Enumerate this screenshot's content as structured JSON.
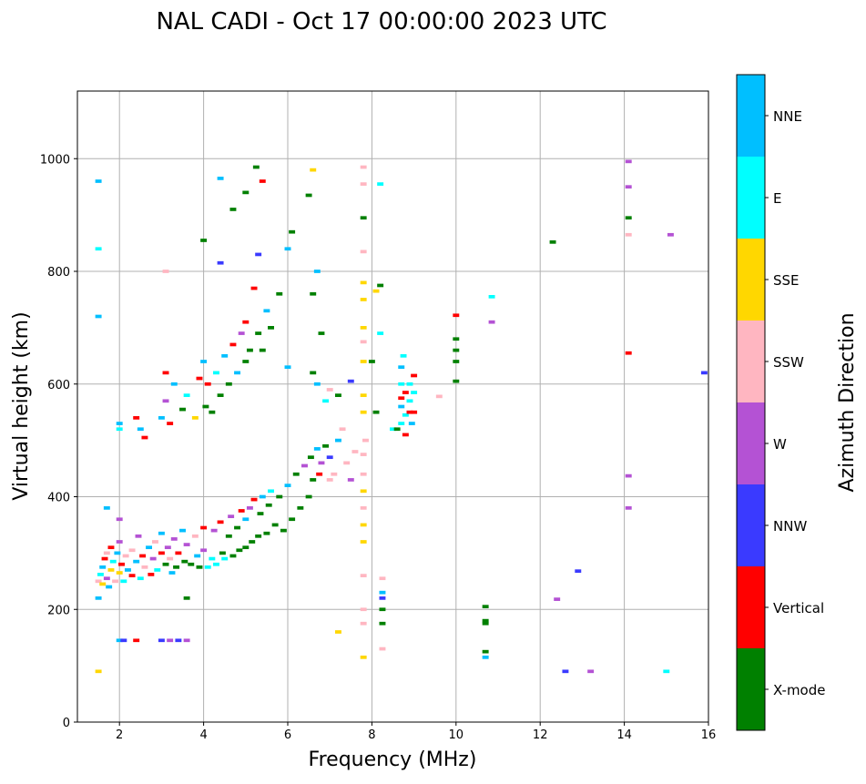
{
  "chart_data": {
    "type": "heatmap",
    "title": "NAL CADI - Oct 17 00:00:00 2023 UTC",
    "xlabel": "Frequency (MHz)",
    "ylabel": "Virtual height (km)",
    "xlim": [
      1,
      16
    ],
    "ylim": [
      0,
      1120
    ],
    "xticks": [
      2,
      4,
      6,
      8,
      10,
      12,
      14,
      16
    ],
    "yticks": [
      0,
      200,
      400,
      600,
      800,
      1000
    ],
    "grid": true,
    "colorbar": {
      "label": "Azimuth Direction",
      "categories": [
        {
          "name": "X-mode",
          "color": "#008000"
        },
        {
          "name": "Vertical",
          "color": "#ff0000"
        },
        {
          "name": "NNW",
          "color": "#3a3aff"
        },
        {
          "name": "W",
          "color": "#b452d4"
        },
        {
          "name": "SSW",
          "color": "#ffb6c1"
        },
        {
          "name": "SSE",
          "color": "#ffd700"
        },
        {
          "name": "E",
          "color": "#00ffff"
        },
        {
          "name": "NNE",
          "color": "#00bfff"
        }
      ]
    },
    "point_fields": [
      "frequency_mhz",
      "virtual_height_km",
      "category_index"
    ],
    "points": [
      [
        1.5,
        250,
        4
      ],
      [
        1.55,
        262,
        6
      ],
      [
        1.6,
        245,
        5
      ],
      [
        1.6,
        275,
        7
      ],
      [
        1.65,
        290,
        1
      ],
      [
        1.7,
        255,
        3
      ],
      [
        1.7,
        300,
        4
      ],
      [
        1.75,
        240,
        7
      ],
      [
        1.8,
        270,
        5
      ],
      [
        1.8,
        310,
        1
      ],
      [
        1.85,
        285,
        6
      ],
      [
        1.9,
        250,
        4
      ],
      [
        1.95,
        300,
        7
      ],
      [
        2.0,
        265,
        5
      ],
      [
        2.0,
        320,
        3
      ],
      [
        2.05,
        280,
        1
      ],
      [
        2.1,
        250,
        6
      ],
      [
        2.15,
        295,
        4
      ],
      [
        2.2,
        270,
        7
      ],
      [
        2.3,
        260,
        1
      ],
      [
        2.3,
        305,
        4
      ],
      [
        2.4,
        285,
        7
      ],
      [
        2.45,
        330,
        3
      ],
      [
        2.5,
        255,
        6
      ],
      [
        2.55,
        295,
        1
      ],
      [
        2.6,
        275,
        4
      ],
      [
        2.7,
        310,
        7
      ],
      [
        2.75,
        262,
        1
      ],
      [
        2.8,
        290,
        3
      ],
      [
        2.85,
        320,
        4
      ],
      [
        2.9,
        270,
        6
      ],
      [
        3.0,
        300,
        1
      ],
      [
        3.0,
        335,
        7
      ],
      [
        3.1,
        280,
        0
      ],
      [
        3.15,
        310,
        3
      ],
      [
        3.2,
        290,
        4
      ],
      [
        3.25,
        265,
        7
      ],
      [
        3.3,
        325,
        3
      ],
      [
        3.35,
        275,
        0
      ],
      [
        3.4,
        300,
        1
      ],
      [
        3.5,
        340,
        7
      ],
      [
        3.55,
        285,
        0
      ],
      [
        3.6,
        315,
        3
      ],
      [
        3.7,
        280,
        0
      ],
      [
        3.8,
        330,
        4
      ],
      [
        3.85,
        295,
        7
      ],
      [
        3.9,
        275,
        0
      ],
      [
        4.0,
        345,
        1
      ],
      [
        4.0,
        305,
        3
      ],
      [
        4.1,
        275,
        6
      ],
      [
        4.2,
        290,
        6
      ],
      [
        4.25,
        340,
        3
      ],
      [
        4.3,
        280,
        6
      ],
      [
        4.4,
        355,
        1
      ],
      [
        4.45,
        300,
        0
      ],
      [
        4.5,
        290,
        6
      ],
      [
        4.6,
        330,
        0
      ],
      [
        4.65,
        365,
        3
      ],
      [
        4.7,
        295,
        0
      ],
      [
        4.8,
        345,
        0
      ],
      [
        4.85,
        305,
        0
      ],
      [
        4.9,
        375,
        1
      ],
      [
        5.0,
        310,
        0
      ],
      [
        5.0,
        360,
        7
      ],
      [
        5.1,
        380,
        3
      ],
      [
        5.15,
        320,
        0
      ],
      [
        5.2,
        395,
        1
      ],
      [
        5.3,
        330,
        0
      ],
      [
        5.35,
        370,
        0
      ],
      [
        5.4,
        400,
        7
      ],
      [
        5.5,
        335,
        0
      ],
      [
        5.55,
        385,
        0
      ],
      [
        5.6,
        410,
        6
      ],
      [
        5.7,
        350,
        0
      ],
      [
        5.8,
        400,
        0
      ],
      [
        5.9,
        340,
        0
      ],
      [
        6.0,
        420,
        7
      ],
      [
        6.1,
        360,
        0
      ],
      [
        6.2,
        440,
        0
      ],
      [
        6.3,
        380,
        0
      ],
      [
        6.4,
        455,
        3
      ],
      [
        6.5,
        400,
        0
      ],
      [
        6.55,
        470,
        0
      ],
      [
        6.6,
        430,
        0
      ],
      [
        6.7,
        485,
        7
      ],
      [
        6.75,
        440,
        1
      ],
      [
        6.8,
        460,
        3
      ],
      [
        6.9,
        490,
        0
      ],
      [
        7.0,
        430,
        4
      ],
      [
        7.0,
        470,
        2
      ],
      [
        7.1,
        440,
        4
      ],
      [
        7.2,
        500,
        7
      ],
      [
        7.4,
        460,
        4
      ],
      [
        7.5,
        430,
        3
      ],
      [
        7.6,
        480,
        4
      ],
      [
        7.8,
        475,
        4
      ],
      [
        7.85,
        500,
        4
      ],
      [
        2.0,
        530,
        7
      ],
      [
        2.0,
        520,
        6
      ],
      [
        2.4,
        540,
        1
      ],
      [
        2.5,
        520,
        7
      ],
      [
        2.6,
        505,
        1
      ],
      [
        3.0,
        540,
        7
      ],
      [
        3.1,
        570,
        3
      ],
      [
        3.2,
        530,
        1
      ],
      [
        3.3,
        600,
        7
      ],
      [
        3.5,
        555,
        0
      ],
      [
        3.6,
        580,
        6
      ],
      [
        3.8,
        540,
        5
      ],
      [
        3.9,
        610,
        1
      ],
      [
        4.0,
        640,
        7
      ],
      [
        4.05,
        560,
        0
      ],
      [
        4.1,
        600,
        1
      ],
      [
        4.2,
        550,
        0
      ],
      [
        4.3,
        620,
        6
      ],
      [
        4.4,
        580,
        0
      ],
      [
        4.5,
        650,
        7
      ],
      [
        4.6,
        600,
        0
      ],
      [
        4.7,
        670,
        1
      ],
      [
        4.8,
        620,
        7
      ],
      [
        4.9,
        690,
        3
      ],
      [
        5.0,
        640,
        0
      ],
      [
        5.0,
        710,
        1
      ],
      [
        5.1,
        660,
        0
      ],
      [
        5.2,
        770,
        1
      ],
      [
        5.3,
        690,
        0
      ],
      [
        5.4,
        660,
        0
      ],
      [
        5.5,
        730,
        7
      ],
      [
        5.6,
        700,
        0
      ],
      [
        5.8,
        760,
        0
      ],
      [
        6.0,
        840,
        7
      ],
      [
        6.0,
        630,
        7
      ],
      [
        6.1,
        870,
        0
      ],
      [
        5.3,
        830,
        2
      ],
      [
        5.4,
        960,
        1
      ],
      [
        5.25,
        985,
        0
      ],
      [
        5.0,
        940,
        0
      ],
      [
        4.7,
        910,
        0
      ],
      [
        4.4,
        965,
        7
      ],
      [
        4.4,
        815,
        2
      ],
      [
        4.0,
        855,
        0
      ],
      [
        6.5,
        935,
        0
      ],
      [
        6.6,
        980,
        5
      ],
      [
        6.6,
        760,
        0
      ],
      [
        6.7,
        800,
        7
      ],
      [
        6.8,
        690,
        0
      ],
      [
        6.6,
        620,
        0
      ],
      [
        6.7,
        600,
        7
      ],
      [
        6.9,
        570,
        6
      ],
      [
        7.0,
        590,
        4
      ],
      [
        7.2,
        580,
        0
      ],
      [
        7.3,
        520,
        4
      ],
      [
        7.5,
        605,
        2
      ],
      [
        7.8,
        985,
        4
      ],
      [
        7.8,
        955,
        4
      ],
      [
        7.8,
        895,
        0
      ],
      [
        7.8,
        835,
        4
      ],
      [
        7.8,
        780,
        5
      ],
      [
        7.8,
        750,
        5
      ],
      [
        7.8,
        700,
        5
      ],
      [
        7.8,
        675,
        4
      ],
      [
        7.8,
        640,
        5
      ],
      [
        7.8,
        580,
        5
      ],
      [
        7.8,
        550,
        5
      ],
      [
        7.8,
        440,
        4
      ],
      [
        7.8,
        410,
        5
      ],
      [
        7.8,
        380,
        4
      ],
      [
        7.8,
        350,
        5
      ],
      [
        7.8,
        320,
        5
      ],
      [
        7.8,
        260,
        4
      ],
      [
        7.8,
        200,
        4
      ],
      [
        7.8,
        175,
        4
      ],
      [
        7.8,
        115,
        5
      ],
      [
        8.0,
        640,
        0
      ],
      [
        8.1,
        765,
        5
      ],
      [
        8.2,
        775,
        0
      ],
      [
        8.2,
        690,
        6
      ],
      [
        8.2,
        955,
        6
      ],
      [
        8.25,
        255,
        4
      ],
      [
        8.25,
        230,
        7
      ],
      [
        8.25,
        220,
        2
      ],
      [
        8.25,
        200,
        0
      ],
      [
        8.25,
        175,
        0
      ],
      [
        8.25,
        130,
        4
      ],
      [
        8.1,
        550,
        0
      ],
      [
        8.5,
        520,
        6
      ],
      [
        8.6,
        520,
        0
      ],
      [
        8.7,
        530,
        6
      ],
      [
        8.7,
        560,
        7
      ],
      [
        8.7,
        600,
        6
      ],
      [
        8.7,
        630,
        7
      ],
      [
        8.75,
        650,
        6
      ],
      [
        8.8,
        510,
        1
      ],
      [
        8.8,
        545,
        6
      ],
      [
        8.8,
        585,
        1
      ],
      [
        8.9,
        550,
        1
      ],
      [
        8.9,
        570,
        6
      ],
      [
        8.9,
        600,
        6
      ],
      [
        8.95,
        530,
        7
      ],
      [
        9.0,
        615,
        1
      ],
      [
        9.0,
        585,
        6
      ],
      [
        9.0,
        550,
        1
      ],
      [
        8.7,
        575,
        1
      ],
      [
        9.6,
        578,
        4
      ],
      [
        10.0,
        722,
        1
      ],
      [
        10.0,
        680,
        0
      ],
      [
        10.0,
        660,
        0
      ],
      [
        10.0,
        605,
        0
      ],
      [
        10.0,
        640,
        0
      ],
      [
        10.7,
        205,
        0
      ],
      [
        10.7,
        180,
        0
      ],
      [
        10.7,
        175,
        0
      ],
      [
        10.7,
        125,
        0
      ],
      [
        10.7,
        115,
        7
      ],
      [
        10.85,
        755,
        6
      ],
      [
        10.85,
        710,
        3
      ],
      [
        12.3,
        852,
        0
      ],
      [
        12.4,
        218,
        3
      ],
      [
        12.6,
        90,
        2
      ],
      [
        12.9,
        268,
        2
      ],
      [
        13.2,
        90,
        3
      ],
      [
        14.1,
        995,
        3
      ],
      [
        14.1,
        950,
        3
      ],
      [
        14.1,
        895,
        0
      ],
      [
        14.1,
        865,
        4
      ],
      [
        14.1,
        655,
        1
      ],
      [
        14.1,
        437,
        3
      ],
      [
        14.1,
        380,
        3
      ],
      [
        15.1,
        865,
        3
      ],
      [
        15.0,
        90,
        6
      ],
      [
        15.9,
        620,
        2
      ],
      [
        1.5,
        960,
        7
      ],
      [
        1.5,
        840,
        6
      ],
      [
        1.5,
        720,
        7
      ],
      [
        1.5,
        220,
        7
      ],
      [
        1.5,
        90,
        5
      ],
      [
        2.0,
        145,
        7
      ],
      [
        2.1,
        145,
        2
      ],
      [
        2.4,
        145,
        1
      ],
      [
        3.0,
        145,
        2
      ],
      [
        3.2,
        145,
        3
      ],
      [
        3.4,
        145,
        2
      ],
      [
        3.6,
        145,
        3
      ],
      [
        3.6,
        220,
        0
      ],
      [
        7.2,
        160,
        5
      ],
      [
        3.1,
        800,
        4
      ],
      [
        3.1,
        620,
        1
      ],
      [
        1.7,
        380,
        7
      ],
      [
        2.0,
        360,
        3
      ]
    ]
  }
}
